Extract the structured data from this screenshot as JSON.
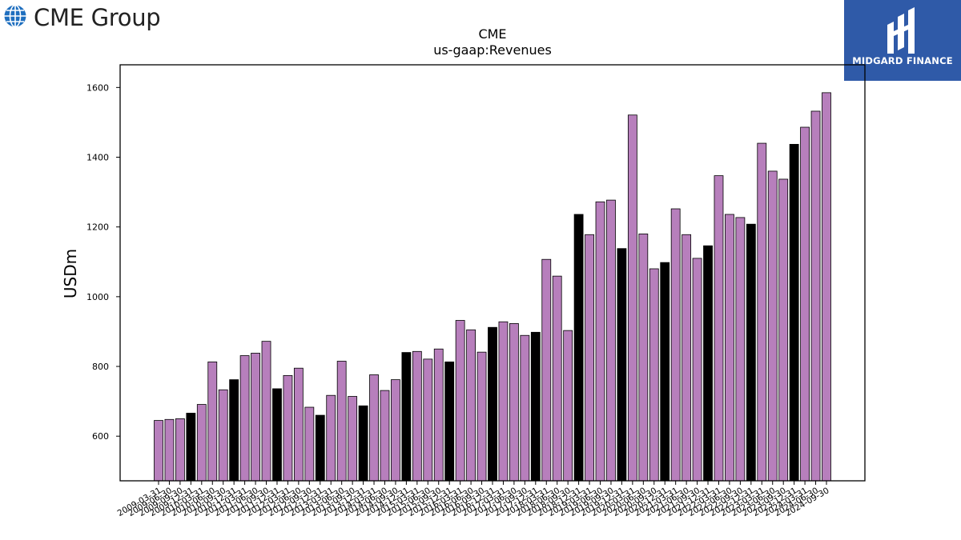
{
  "branding": {
    "company_logo_text": "CME Group",
    "publisher_logo_text": "MIDGARD FINANCE"
  },
  "colors": {
    "bar_default": "#b77fbc",
    "bar_highlight": "#000000",
    "publisher_bg": "#2f5aa8"
  },
  "chart_data": {
    "type": "bar",
    "title": "CME",
    "subtitle": "us-gaap:Revenues",
    "xlabel": "",
    "ylabel": "USDm",
    "ylim": [
      472,
      1665
    ],
    "yticks": [
      600,
      800,
      1000,
      1200,
      1400,
      1600
    ],
    "grid": false,
    "legend": "none",
    "highlight_rule": "fiscal year-end quarters (12-31) are drawn black",
    "categories": [
      "2009-03-31",
      "2009-06-30",
      "2009-09-30",
      "2009-12-31",
      "2010-03-31",
      "2010-06-30",
      "2010-09-30",
      "2010-12-31",
      "2011-03-31",
      "2011-06-30",
      "2011-09-30",
      "2011-12-31",
      "2012-03-31",
      "2012-06-30",
      "2012-09-30",
      "2012-12-31",
      "2013-03-31",
      "2013-06-30",
      "2013-09-30",
      "2013-12-31",
      "2014-03-31",
      "2014-06-30",
      "2014-09-30",
      "2014-12-31",
      "2015-03-31",
      "2015-06-30",
      "2015-09-30",
      "2015-12-31",
      "2016-03-31",
      "2016-06-30",
      "2016-09-30",
      "2016-12-31",
      "2017-03-31",
      "2017-06-30",
      "2017-09-30",
      "2017-12-31",
      "2018-03-31",
      "2018-06-30",
      "2018-09-30",
      "2018-12-31",
      "2019-03-31",
      "2019-06-30",
      "2019-09-30",
      "2019-12-31",
      "2020-03-31",
      "2020-06-30",
      "2020-09-30",
      "2020-12-31",
      "2021-03-31",
      "2021-06-30",
      "2021-09-30",
      "2021-12-31",
      "2022-03-31",
      "2022-06-30",
      "2022-09-30",
      "2022-12-31",
      "2023-03-31",
      "2023-06-30",
      "2023-09-30",
      "2023-12-31",
      "2024-03-31",
      "2024-06-30",
      "2024-09-30"
    ],
    "values": [
      645,
      648,
      650,
      666,
      691,
      813,
      733,
      762,
      831,
      838,
      872,
      736,
      774,
      795,
      683,
      660,
      717,
      815,
      714,
      687,
      776,
      731,
      762,
      840,
      843,
      821,
      850,
      813,
      932,
      905,
      841,
      912,
      928,
      923,
      889,
      898,
      1107,
      1059,
      903,
      1236,
      1178,
      1272,
      1277,
      1138,
      1521,
      1180,
      1080,
      1098,
      1252,
      1178,
      1110,
      1146,
      1347,
      1236,
      1227,
      1208,
      1440,
      1360,
      1337,
      1437,
      1486,
      1532,
      1585
    ]
  }
}
